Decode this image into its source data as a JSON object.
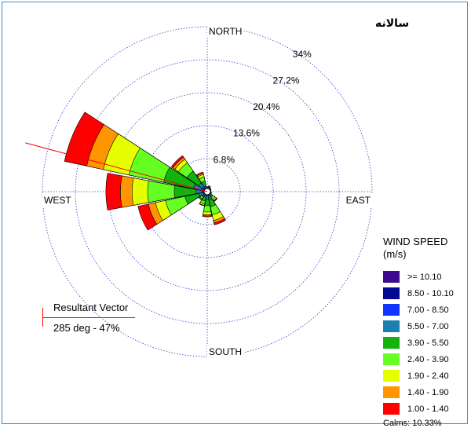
{
  "title": "سالانه",
  "chart_data": {
    "type": "windrose",
    "title": "سالانه",
    "directions": [
      "N",
      "NNE",
      "NE",
      "ENE",
      "E",
      "ESE",
      "SE",
      "SSE",
      "S",
      "SSW",
      "SW",
      "WSW",
      "W",
      "WNW",
      "NW",
      "NNW"
    ],
    "compass_labels": {
      "north": "NORTH",
      "east": "EAST",
      "south": "SOUTH",
      "west": "WEST"
    },
    "ring_values": [
      6.8,
      13.6,
      20.4,
      27.2,
      34
    ],
    "ring_labels": [
      "6.8%",
      "13.6%",
      "20.4%",
      "27.2%",
      "34%"
    ],
    "speed_bins": [
      {
        "label": ">= 10.10",
        "color": "#3d0a91"
      },
      {
        "label": "8.50 - 10.10",
        "color": "#020b91"
      },
      {
        "label": "7.00 - 8.50",
        "color": "#0f36ff"
      },
      {
        "label": "5.50 - 7.00",
        "color": "#1b7fb1"
      },
      {
        "label": "3.90 - 5.50",
        "color": "#13b20f"
      },
      {
        "label": "2.40 - 3.90",
        "color": "#66ff22"
      },
      {
        "label": "1.90 - 2.40",
        "color": "#e6ff00"
      },
      {
        "label": "1.40 - 1.90",
        "color": "#ff9500"
      },
      {
        "label": "1.00 - 1.40",
        "color": "#ff0000"
      }
    ],
    "cumulative_percent_by_direction": {
      "N": [
        0.3,
        0.5,
        0.7,
        0.8,
        1.0,
        1.0,
        1.0,
        1.0,
        1.0
      ],
      "NNE": [
        0.3,
        0.5,
        0.7,
        1.0,
        1.2,
        1.2,
        1.2,
        1.2,
        1.2
      ],
      "NE": [
        0.3,
        0.4,
        0.6,
        0.8,
        0.9,
        0.9,
        0.9,
        0.9,
        0.9
      ],
      "ENE": [
        0.3,
        0.4,
        0.5,
        0.7,
        0.8,
        0.8,
        0.8,
        0.8,
        0.8
      ],
      "E": [
        0.3,
        0.4,
        0.5,
        0.6,
        0.7,
        0.7,
        0.7,
        0.7,
        0.7
      ],
      "ESE": [
        0.3,
        0.4,
        0.5,
        0.6,
        0.8,
        0.9,
        0.9,
        0.9,
        0.9
      ],
      "SE": [
        0.3,
        0.4,
        0.6,
        0.9,
        1.4,
        2.0,
        2.3,
        2.4,
        2.5
      ],
      "SSE": [
        0.3,
        0.5,
        0.8,
        1.7,
        3.2,
        4.9,
        6.1,
        6.6,
        7.0
      ],
      "S": [
        0.3,
        0.5,
        0.8,
        1.6,
        2.9,
        4.2,
        4.8,
        5.0,
        5.2
      ],
      "SSW": [
        0.3,
        0.5,
        0.7,
        1.2,
        2.0,
        2.6,
        2.9,
        3.0,
        3.0
      ],
      "SW": [
        0.3,
        0.4,
        0.6,
        0.9,
        1.4,
        1.8,
        2.0,
        2.1,
        2.1
      ],
      "WSW": [
        0.3,
        0.5,
        0.8,
        1.8,
        4.7,
        8.8,
        10.9,
        12.4,
        14.6
      ],
      "W": [
        0.4,
        0.7,
        1.1,
        2.3,
        6.8,
        12.3,
        15.5,
        17.9,
        20.9
      ],
      "WNW": [
        0.4,
        0.7,
        1.3,
        2.9,
        9.2,
        16.5,
        21.9,
        25.4,
        30.1
      ],
      "NW": [
        0.3,
        0.6,
        1.0,
        2.2,
        5.1,
        7.2,
        8.1,
        8.6,
        9.0
      ],
      "NNW": [
        0.3,
        0.5,
        0.7,
        1.2,
        2.2,
        3.1,
        3.6,
        3.9,
        4.1
      ]
    },
    "legend_title": "WIND SPEED\n(m/s)",
    "legend_placement": "right",
    "calms": "Calms: 10.33%",
    "resultant_vector": {
      "title": "Resultant Vector",
      "value": "285 deg - 47%",
      "direction_deg": 285,
      "color": "#ff0000"
    }
  }
}
